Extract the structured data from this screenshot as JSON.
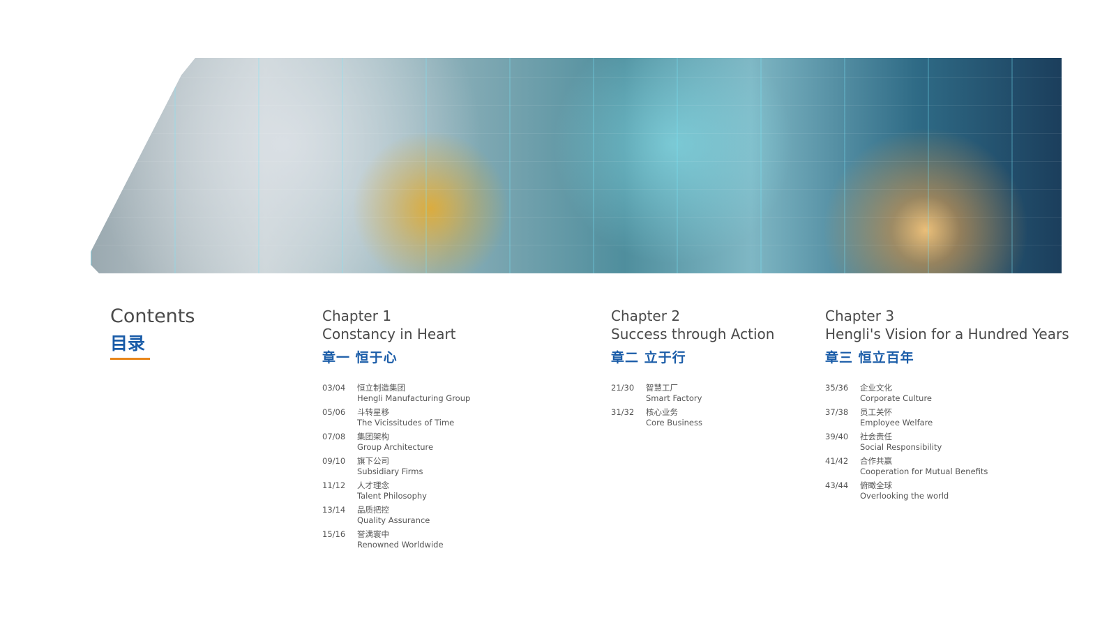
{
  "banner": {
    "image": "factory-robots-photo"
  },
  "contents": {
    "en": "Contents",
    "zh": "目录",
    "accent": "#e8861a"
  },
  "colors": {
    "blue": "#1a5ca8",
    "text": "#4a4a4a"
  },
  "chapters": [
    {
      "num": "Chapter 1",
      "title": "Constancy in Heart",
      "zh": "章一  恒于心",
      "items": [
        {
          "pages": "03/04",
          "zh": "恒立制造集团",
          "en": "Hengli Manufacturing Group"
        },
        {
          "pages": "05/06",
          "zh": "斗转星移",
          "en": "The Vicissitudes of Time"
        },
        {
          "pages": "07/08",
          "zh": "集团架构",
          "en": "Group Architecture"
        },
        {
          "pages": "09/10",
          "zh": "旗下公司",
          "en": "Subsidiary Firms"
        },
        {
          "pages": "11/12",
          "zh": "人才理念",
          "en": "Talent Philosophy"
        },
        {
          "pages": "13/14",
          "zh": "品质把控",
          "en": "Quality Assurance"
        },
        {
          "pages": "15/16",
          "zh": "誉满寰中",
          "en": "Renowned Worldwide"
        }
      ]
    },
    {
      "num": "Chapter 2",
      "title": "Success through Action",
      "zh": "章二  立于行",
      "items": [
        {
          "pages": "21/30",
          "zh": "智慧工厂",
          "en": "Smart Factory"
        },
        {
          "pages": "31/32",
          "zh": "核心业务",
          "en": "Core Business"
        }
      ]
    },
    {
      "num": "Chapter 3",
      "title": "Hengli's Vision for a Hundred Years",
      "zh": "章三  恒立百年",
      "items": [
        {
          "pages": "35/36",
          "zh": "企业文化",
          "en": "Corporate Culture"
        },
        {
          "pages": "37/38",
          "zh": "员工关怀",
          "en": "Employee Welfare"
        },
        {
          "pages": "39/40",
          "zh": "社会责任",
          "en": "Social Responsibility"
        },
        {
          "pages": "41/42",
          "zh": "合作共赢",
          "en": "Cooperation for Mutual Benefits"
        },
        {
          "pages": "43/44",
          "zh": "俯瞰全球",
          "en": "Overlooking the world"
        }
      ]
    }
  ]
}
